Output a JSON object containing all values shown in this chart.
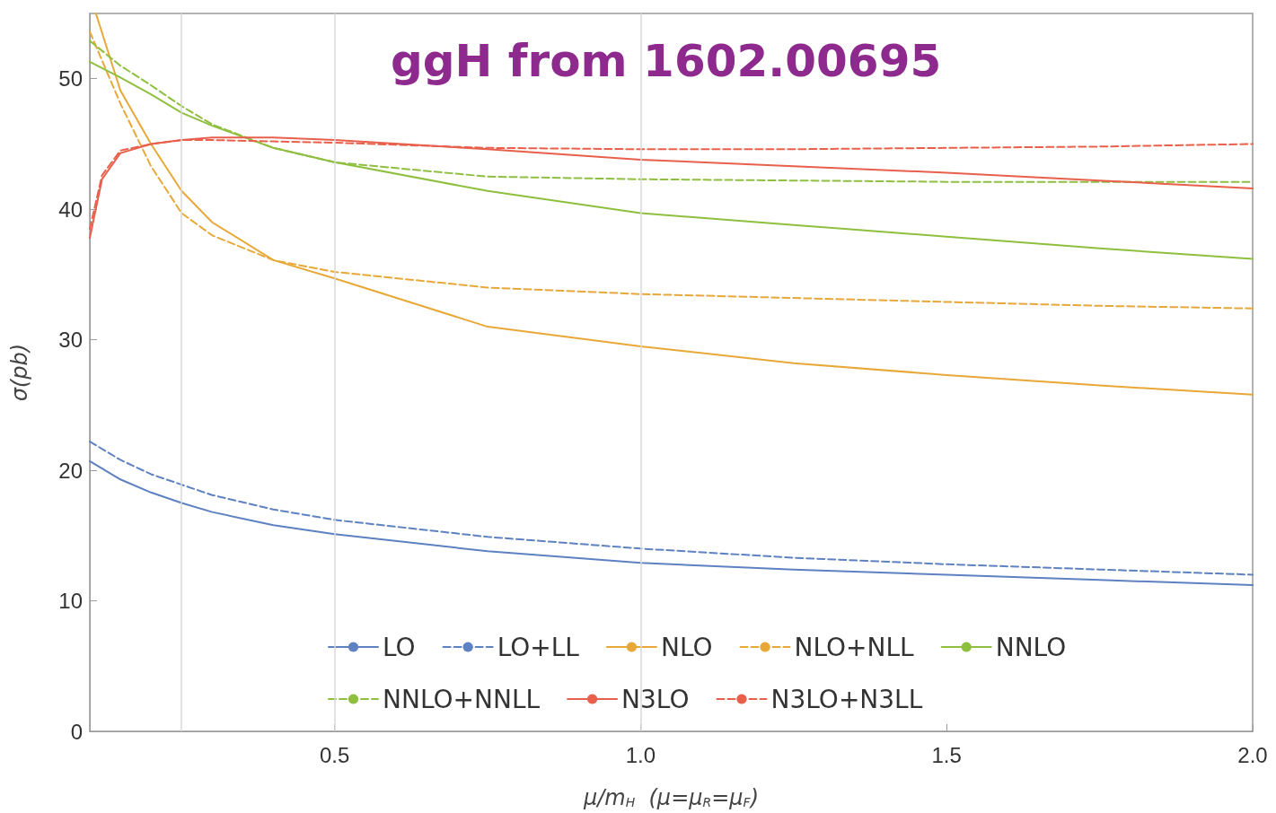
{
  "chart_data": {
    "type": "line",
    "title": "ggH from 1602.00695",
    "xlabel": "μ/m$_{H}$  (μ=μ$_{R}$=μ$_{F}$)",
    "ylabel": "σ(pb)",
    "xlim": [
      0.1,
      2.0
    ],
    "ylim": [
      0,
      55
    ],
    "xticks": [
      0.5,
      {
        "value": 1,
        "label": "1.0"
      },
      1.5,
      {
        "value": 2,
        "label": "2.0"
      }
    ],
    "yticks": [
      0,
      10,
      20,
      30,
      40,
      50
    ],
    "grid": false,
    "legend": "bottom",
    "marker": "none",
    "ref_lines": [
      {
        "axis": "x",
        "value": 0.25,
        "color": "#d9d9d9"
      },
      {
        "axis": "x",
        "value": 0.5,
        "color": "#d9d9d9"
      },
      {
        "axis": "x",
        "value": 1.0,
        "color": "#d9d9d9"
      }
    ],
    "x": [
      0.1,
      0.15,
      0.2,
      0.25,
      0.3,
      0.4,
      0.5,
      0.75,
      1.0,
      1.25,
      1.5,
      1.75,
      2.0
    ],
    "series": [
      {
        "name": "LO",
        "color": "#5e81c2",
        "line_style": "solid",
        "values": [
          20.7,
          19.3,
          18.3,
          17.5,
          16.8,
          15.8,
          15.1,
          13.8,
          12.9,
          12.4,
          12.0,
          11.6,
          11.2
        ]
      },
      {
        "name": "LO+LL",
        "color": "#5e81c2",
        "line_style": "dashed",
        "values": [
          22.2,
          20.8,
          19.7,
          18.9,
          18.1,
          17.0,
          16.2,
          14.9,
          14.0,
          13.3,
          12.8,
          12.4,
          12.0
        ]
      },
      {
        "name": "NLO",
        "color": "#e8a838",
        "line_style": "solid",
        "x": [
          0.11,
          0.15,
          0.2,
          0.25,
          0.3,
          0.4,
          0.5,
          0.75,
          1.0,
          1.25,
          1.5,
          1.75,
          2.0
        ],
        "values": [
          55,
          49.1,
          45.0,
          41.4,
          39.0,
          36.1,
          34.7,
          31.0,
          29.5,
          28.2,
          27.3,
          26.5,
          25.8
        ]
      },
      {
        "name": "NLO+NLL",
        "color": "#e8a838",
        "line_style": "dashed",
        "values": [
          53.6,
          48.1,
          43.3,
          39.7,
          38.0,
          36.1,
          35.2,
          34.0,
          33.5,
          33.2,
          32.9,
          32.6,
          32.4
        ]
      },
      {
        "name": "NNLO",
        "color": "#8fbf3f",
        "line_style": "solid",
        "values": [
          51.3,
          50.1,
          48.8,
          47.4,
          46.4,
          44.7,
          43.6,
          41.4,
          39.7,
          38.8,
          37.9,
          37.0,
          36.2
        ]
      },
      {
        "name": "NNLO+NNLL",
        "color": "#8fbf3f",
        "line_style": "dashed",
        "values": [
          52.9,
          51.0,
          49.5,
          47.9,
          46.5,
          44.7,
          43.6,
          42.5,
          42.3,
          42.2,
          42.1,
          42.1,
          42.1
        ]
      },
      {
        "name": "N3LO",
        "color": "#e8604c",
        "line_style": "solid",
        "x": [
          0.1,
          0.12,
          0.15,
          0.2,
          0.25,
          0.3,
          0.4,
          0.5,
          0.75,
          1.0,
          1.25,
          1.5,
          1.75,
          2.0
        ],
        "values": [
          37.8,
          42.3,
          44.3,
          45.0,
          45.3,
          45.5,
          45.5,
          45.3,
          44.6,
          43.8,
          43.3,
          42.8,
          42.2,
          41.6
        ]
      },
      {
        "name": "N3LO+N3LL",
        "color": "#e8604c",
        "line_style": "dashed",
        "x": [
          0.1,
          0.12,
          0.15,
          0.2,
          0.25,
          0.3,
          0.4,
          0.5,
          0.75,
          1.0,
          1.25,
          1.5,
          1.75,
          2.0
        ],
        "values": [
          38.5,
          42.6,
          44.5,
          45.0,
          45.3,
          45.3,
          45.2,
          45.1,
          44.7,
          44.6,
          44.6,
          44.7,
          44.8,
          45.0
        ]
      }
    ]
  }
}
